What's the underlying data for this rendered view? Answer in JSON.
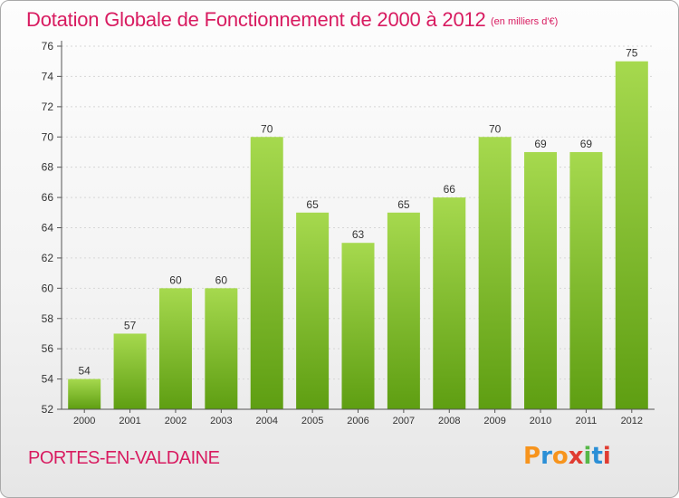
{
  "header": {
    "title": "Dotation Globale de Fonctionnement de 2000 à 2012",
    "subtitle": "(en milliers d'€)"
  },
  "footer": {
    "commune": "PORTES-EN-VALDAINE",
    "logo": "Proxiti",
    "logo_colors": [
      "#f7941d",
      "#2b8fd6",
      "#f7941d",
      "#e03c31",
      "#56b848",
      "#2b8fd6",
      "#e03c31"
    ]
  },
  "colors": {
    "title": "#d81b60",
    "bar_light": "#a6d94e",
    "bar_dark": "#5e9e12",
    "axis": "#555555"
  },
  "chart_data": {
    "type": "bar",
    "title": "Dotation Globale de Fonctionnement de 2000 à 2012",
    "subtitle": "(en milliers d'€)",
    "categories": [
      "2000",
      "2001",
      "2002",
      "2003",
      "2004",
      "2005",
      "2006",
      "2007",
      "2008",
      "2009",
      "2010",
      "2011",
      "2012"
    ],
    "values": [
      54,
      57,
      60,
      60,
      70,
      65,
      63,
      65,
      66,
      70,
      69,
      69,
      75
    ],
    "ylim": [
      52,
      76
    ],
    "yticks": [
      52,
      54,
      56,
      58,
      60,
      62,
      64,
      66,
      68,
      70,
      72,
      74,
      76
    ],
    "grid": true,
    "legend": "none"
  }
}
